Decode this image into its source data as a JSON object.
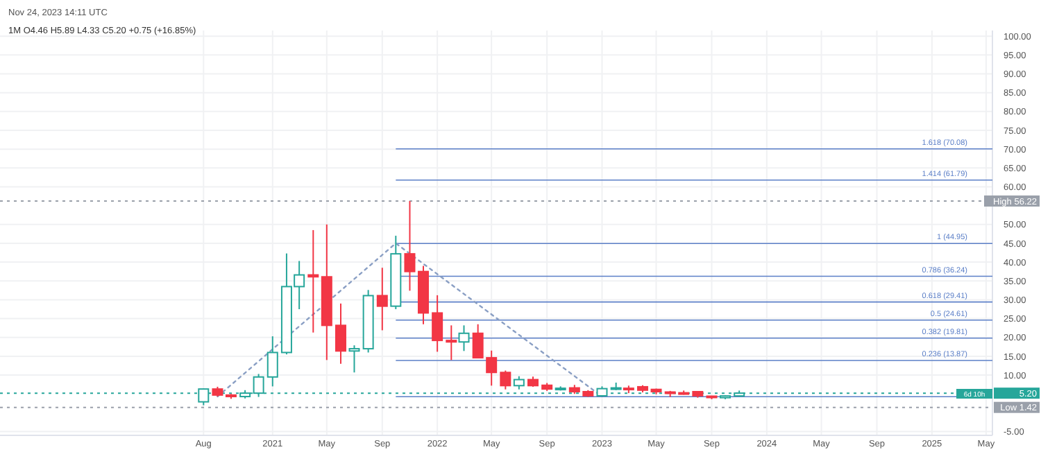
{
  "chart_data": {
    "type": "candlestick",
    "title": "1M  O4.46 H5.89 L4.33 C5.20 +0.75 (+16.85%)",
    "subtitle": "Nov 24, 2023 14:11 UTC",
    "x": [
      "2020-08",
      "2020-09",
      "2020-10",
      "2020-11",
      "2020-12",
      "2021-01",
      "2021-02",
      "2021-03",
      "2021-04",
      "2021-05",
      "2021-06",
      "2021-07",
      "2021-08",
      "2021-09",
      "2021-10",
      "2021-11",
      "2021-12",
      "2022-01",
      "2022-02",
      "2022-03",
      "2022-04",
      "2022-05",
      "2022-06",
      "2022-07",
      "2022-08",
      "2022-09",
      "2022-10",
      "2022-11",
      "2022-12",
      "2023-01",
      "2023-02",
      "2023-03",
      "2023-04",
      "2023-05",
      "2023-06",
      "2023-07",
      "2023-08",
      "2023-09",
      "2023-10",
      "2023-11"
    ],
    "ohlc": [
      [
        2.9,
        6.4,
        2.0,
        6.3
      ],
      [
        6.3,
        6.9,
        4.3,
        4.7
      ],
      [
        4.7,
        5.0,
        3.7,
        4.3
      ],
      [
        4.3,
        6.0,
        3.8,
        5.2
      ],
      [
        5.2,
        10.3,
        4.2,
        9.5
      ],
      [
        9.5,
        20.3,
        7.0,
        16.0
      ],
      [
        16.0,
        42.3,
        15.5,
        33.5
      ],
      [
        33.5,
        40.3,
        27.5,
        36.6
      ],
      [
        36.6,
        48.5,
        21.3,
        36.1
      ],
      [
        36.1,
        50.0,
        14.0,
        23.2
      ],
      [
        23.2,
        29.0,
        13.0,
        16.4
      ],
      [
        16.4,
        17.9,
        10.7,
        17.0
      ],
      [
        17.0,
        32.6,
        16.0,
        31.1
      ],
      [
        31.1,
        38.5,
        21.9,
        28.3
      ],
      [
        28.3,
        47.0,
        27.5,
        42.2
      ],
      [
        42.2,
        56.22,
        32.4,
        37.5
      ],
      [
        37.5,
        39.0,
        23.5,
        26.5
      ],
      [
        26.5,
        31.2,
        16.2,
        19.2
      ],
      [
        19.2,
        23.2,
        14.0,
        18.8
      ],
      [
        18.8,
        23.2,
        16.4,
        21.1
      ],
      [
        21.1,
        23.5,
        14.5,
        14.6
      ],
      [
        14.6,
        16.5,
        7.2,
        10.7
      ],
      [
        10.7,
        11.2,
        6.2,
        7.2
      ],
      [
        7.2,
        9.7,
        6.2,
        8.8
      ],
      [
        8.8,
        9.6,
        6.9,
        7.2
      ],
      [
        7.3,
        7.9,
        5.8,
        6.3
      ],
      [
        6.3,
        7.0,
        5.9,
        6.5
      ],
      [
        6.6,
        7.4,
        5.0,
        5.6
      ],
      [
        5.6,
        6.0,
        4.2,
        4.5
      ],
      [
        4.5,
        7.0,
        4.2,
        6.4
      ],
      [
        6.4,
        8.0,
        6.0,
        6.6
      ],
      [
        6.5,
        7.2,
        5.2,
        6.3
      ],
      [
        6.9,
        7.3,
        5.4,
        6.0
      ],
      [
        6.2,
        6.4,
        4.9,
        5.6
      ],
      [
        5.5,
        5.8,
        4.2,
        5.2
      ],
      [
        5.3,
        5.9,
        4.8,
        5.1
      ],
      [
        5.6,
        5.7,
        4.0,
        4.5
      ],
      [
        4.4,
        4.5,
        3.6,
        4.1
      ],
      [
        4.0,
        4.6,
        3.6,
        4.46
      ],
      [
        4.46,
        5.89,
        4.33,
        5.2
      ]
    ],
    "colors": [
      "#26a69a",
      "#f23645",
      "#f23645",
      "#26a69a",
      "#26a69a",
      "#26a69a",
      "#26a69a",
      "#26a69a",
      "#f23645",
      "#f23645",
      "#f23645",
      "#26a69a",
      "#26a69a",
      "#f23645",
      "#26a69a",
      "#f23645",
      "#f23645",
      "#f23645",
      "#f23645",
      "#26a69a",
      "#f23645",
      "#f23645",
      "#f23645",
      "#26a69a",
      "#f23645",
      "#f23645",
      "#26a69a",
      "#f23645",
      "#f23645",
      "#26a69a",
      "#26a69a",
      "#f23645",
      "#f23645",
      "#f23645",
      "#f23645",
      "#f23645",
      "#f23645",
      "#f23645",
      "#26a69a",
      "#26a69a"
    ],
    "series": [
      {
        "type": "line",
        "x": [
          "2020-09",
          "2021-10",
          "2023-01"
        ],
        "values": [
          4.3,
          45,
          4.3
        ],
        "color": "#8a9fc4",
        "line_style": "dotted"
      }
    ],
    "xlim": [
      "2019-05-08",
      "2025-05-15"
    ],
    "ylim": [
      -6,
      101.5
    ],
    "xticks": [
      {
        "value": "2020-08",
        "label": "Aug"
      },
      {
        "value": "2021-01",
        "label": "2021"
      },
      {
        "value": "2021-05",
        "label": "May"
      },
      {
        "value": "2021-09",
        "label": "Sep"
      },
      {
        "value": "2022-01",
        "label": "2022"
      },
      {
        "value": "2022-05",
        "label": "May"
      },
      {
        "value": "2022-09",
        "label": "Sep"
      },
      {
        "value": "2023-01",
        "label": "2023"
      },
      {
        "value": "2023-05",
        "label": "May"
      },
      {
        "value": "2023-09",
        "label": "Sep"
      },
      {
        "value": "2024-01",
        "label": "2024"
      },
      {
        "value": "2024-05",
        "label": "May"
      },
      {
        "value": "2024-09",
        "label": "Sep"
      },
      {
        "value": "2025-01",
        "label": "2025"
      },
      {
        "value": "2025-05",
        "label": "May"
      }
    ],
    "yticks": [
      {
        "value": -5,
        "label": "-5.00"
      },
      {
        "value": 10,
        "label": "10.00"
      },
      {
        "value": 15,
        "label": "15.00"
      },
      {
        "value": 20,
        "label": "20.00"
      },
      {
        "value": 25,
        "label": "25.00"
      },
      {
        "value": 30,
        "label": "30.00"
      },
      {
        "value": 35,
        "label": "35.00"
      },
      {
        "value": 40,
        "label": "40.00"
      },
      {
        "value": 45,
        "label": "45.00"
      },
      {
        "value": 50,
        "label": "50.00"
      },
      {
        "value": 60,
        "label": "60.00"
      },
      {
        "value": 65,
        "label": "65.00"
      },
      {
        "value": 70,
        "label": "70.00"
      },
      {
        "value": 75,
        "label": "75.00"
      },
      {
        "value": 80,
        "label": "80.00"
      },
      {
        "value": 85,
        "label": "85.00"
      },
      {
        "value": 90,
        "label": "90.00"
      },
      {
        "value": 95,
        "label": "95.00"
      },
      {
        "value": 100,
        "label": "100.00"
      }
    ],
    "grid": true,
    "ref_lines": [
      {
        "axis": "y",
        "value": 70.08,
        "label": "1.618 (70.08)",
        "color": "#5b7fc7",
        "line_style": "solid"
      },
      {
        "axis": "y",
        "value": 61.79,
        "label": "1.414 (61.79)",
        "color": "#5b7fc7",
        "line_style": "solid"
      },
      {
        "axis": "y",
        "value": 44.95,
        "label": "1 (44.95)",
        "color": "#5b7fc7",
        "line_style": "solid"
      },
      {
        "axis": "y",
        "value": 36.24,
        "label": "0.786 (36.24)",
        "color": "#5b7fc7",
        "line_style": "solid"
      },
      {
        "axis": "y",
        "value": 29.41,
        "label": "0.618 (29.41)",
        "color": "#5b7fc7",
        "line_style": "solid"
      },
      {
        "axis": "y",
        "value": 24.61,
        "label": "0.5 (24.61)",
        "color": "#5b7fc7",
        "line_style": "solid"
      },
      {
        "axis": "y",
        "value": 19.81,
        "label": "0.382 (19.81)",
        "color": "#5b7fc7",
        "line_style": "solid"
      },
      {
        "axis": "y",
        "value": 13.87,
        "label": "0.236 (13.87)",
        "color": "#5b7fc7",
        "line_style": "solid"
      },
      {
        "axis": "y",
        "value": 4.27,
        "label": null,
        "color": "#5b7fc7",
        "line_style": "solid"
      },
      {
        "axis": "y",
        "value": 56.22,
        "label": "High 56.22",
        "color": "#9aa0aa",
        "line_style": "dotted"
      },
      {
        "axis": "y",
        "value": 1.42,
        "label": "Low 1.42",
        "color": "#9aa0aa",
        "line_style": "dotted"
      },
      {
        "axis": "y",
        "value": 5.2,
        "label": "5.20",
        "color": "#26a69a",
        "line_style": "dotted"
      }
    ],
    "annotations": [
      "6d 10h"
    ]
  }
}
